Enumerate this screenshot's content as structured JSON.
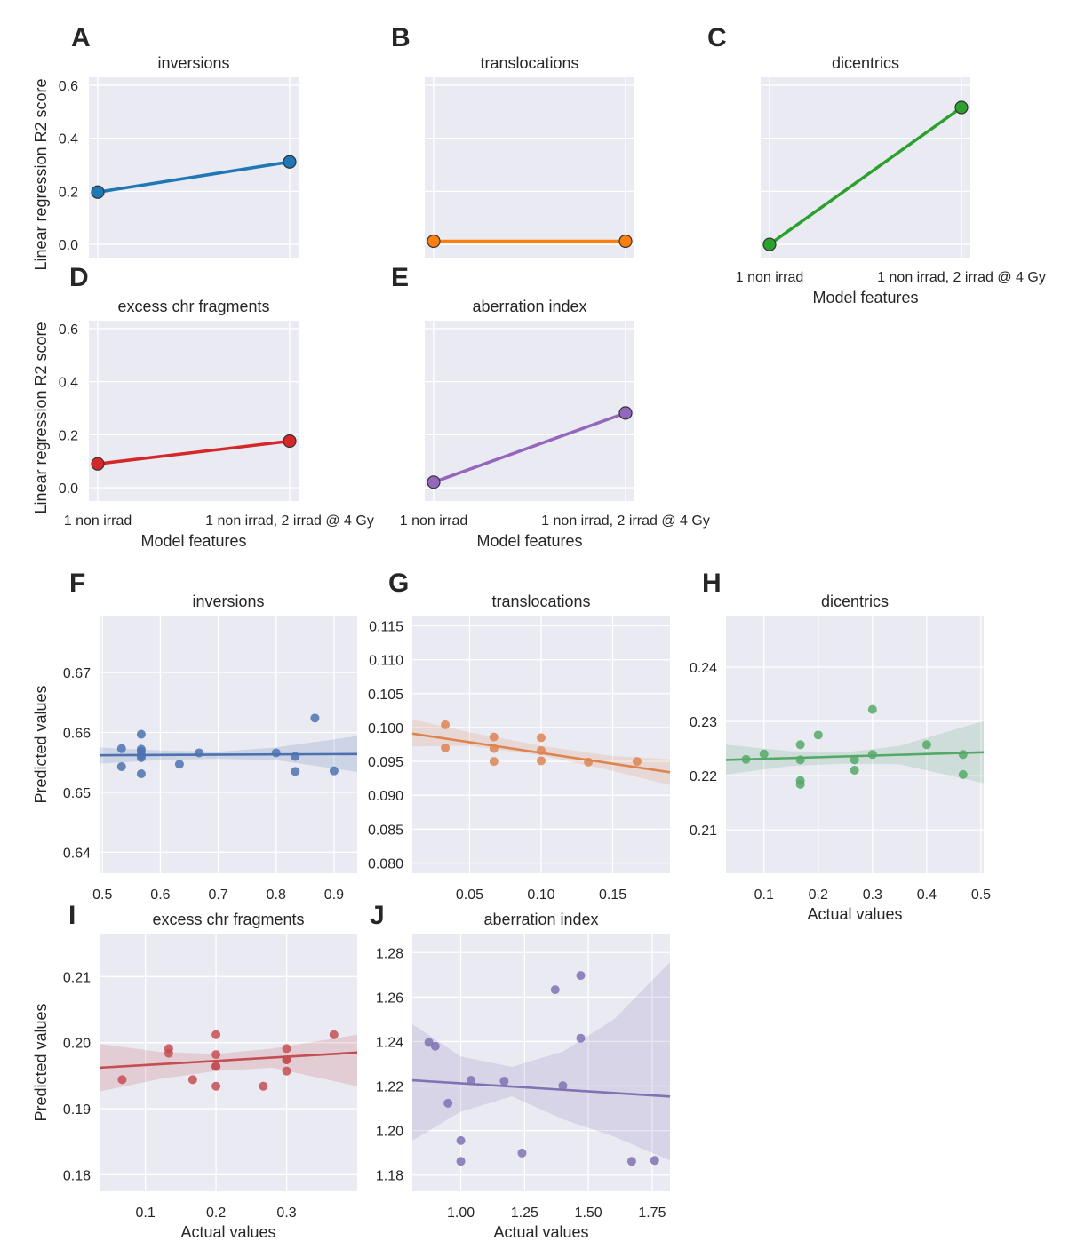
{
  "chart_data": [
    {
      "panel": "A",
      "type": "line",
      "title": "inversions",
      "categories": [
        "1 non irrad",
        "1 non irrad, 2 irrad @ 4 Gy"
      ],
      "values": [
        0.197,
        0.311
      ],
      "color": "#1f77b4",
      "ylabel": "Linear regression R2 score",
      "xlabel": "",
      "ylim": [
        -0.05,
        0.63
      ],
      "yticks": [
        0.0,
        0.2,
        0.4,
        0.6
      ],
      "yticklabels": [
        "0.0",
        "0.2",
        "0.4",
        "0.6"
      ]
    },
    {
      "panel": "B",
      "type": "line",
      "title": "translocations",
      "categories": [
        "1 non irrad",
        "1 non irrad, 2 irrad @ 4 Gy"
      ],
      "values": [
        0.012,
        0.012
      ],
      "color": "#ff7f0e",
      "ylabel": "",
      "xlabel": "",
      "ylim": [
        -0.05,
        0.63
      ],
      "yticks": [
        0.0,
        0.2,
        0.4,
        0.6
      ],
      "yticklabels": []
    },
    {
      "panel": "C",
      "type": "line",
      "title": "dicentrics",
      "categories": [
        "1 non irrad",
        "1 non irrad, 2 irrad @ 4 Gy"
      ],
      "values": [
        0.0,
        0.516
      ],
      "color": "#2ca02c",
      "ylabel": "",
      "xlabel": "Model features",
      "xticklabels": [
        "1 non irrad",
        "1 non irrad, 2 irrad @ 4 Gy"
      ],
      "ylim": [
        -0.05,
        0.63
      ],
      "yticks": [
        0.0,
        0.2,
        0.4,
        0.6
      ],
      "yticklabels": []
    },
    {
      "panel": "D",
      "type": "line",
      "title": "excess chr fragments",
      "categories": [
        "1 non irrad",
        "1 non irrad, 2 irrad @ 4 Gy"
      ],
      "values": [
        0.09,
        0.176
      ],
      "color": "#d62728",
      "ylabel": "Linear regression R2 score",
      "xlabel": "Model features",
      "xticklabels": [
        "1 non irrad",
        "1 non irrad, 2 irrad @ 4 Gy"
      ],
      "ylim": [
        -0.05,
        0.63
      ],
      "yticks": [
        0.0,
        0.2,
        0.4,
        0.6
      ],
      "yticklabels": [
        "0.0",
        "0.2",
        "0.4",
        "0.6"
      ]
    },
    {
      "panel": "E",
      "type": "line",
      "title": "aberration index",
      "categories": [
        "1 non irrad",
        "1 non irrad, 2 irrad @ 4 Gy"
      ],
      "values": [
        0.021,
        0.282
      ],
      "color": "#9467bd",
      "ylabel": "",
      "xlabel": "Model features",
      "xticklabels": [
        "1 non irrad",
        "1 non irrad, 2 irrad @ 4 Gy"
      ],
      "ylim": [
        -0.05,
        0.63
      ],
      "yticks": [
        0.0,
        0.2,
        0.4,
        0.6
      ],
      "yticklabels": []
    },
    {
      "panel": "F",
      "type": "scatter",
      "title": "inversions",
      "color": "#4c72b0",
      "xlabel": "",
      "ylabel": "Predicted values",
      "xlim": [
        0.495,
        0.94
      ],
      "ylim": [
        0.6365,
        0.6795
      ],
      "xticks": [
        0.5,
        0.6,
        0.7,
        0.8,
        0.9
      ],
      "xticklabels": [
        "0.5",
        "0.6",
        "0.7",
        "0.8",
        "0.9"
      ],
      "yticks": [
        0.64,
        0.65,
        0.66,
        0.67
      ],
      "yticklabels": [
        "0.64",
        "0.65",
        "0.66",
        "0.67"
      ],
      "x": [
        0.533,
        0.533,
        0.567,
        0.567,
        0.567,
        0.567,
        0.567,
        0.567,
        0.633,
        0.667,
        0.8,
        0.833,
        0.833,
        0.867,
        0.9
      ],
      "y": [
        0.6573,
        0.6543,
        0.6597,
        0.6572,
        0.6568,
        0.6562,
        0.6558,
        0.6531,
        0.6547,
        0.6566,
        0.6566,
        0.656,
        0.6535,
        0.6624,
        0.6536
      ],
      "fit": {
        "x": [
          0.495,
          0.94
        ],
        "y": [
          0.6562,
          0.6564
        ]
      },
      "band": {
        "x": [
          0.495,
          0.6,
          0.7,
          0.8,
          0.94
        ],
        "upper": [
          0.6575,
          0.657,
          0.6568,
          0.6575,
          0.6594
        ],
        "lower": [
          0.6548,
          0.6554,
          0.6556,
          0.6554,
          0.6534
        ]
      }
    },
    {
      "panel": "G",
      "type": "scatter",
      "title": "translocations",
      "color": "#dd8452",
      "xlabel": "",
      "ylabel": "",
      "xlim": [
        0.01,
        0.19
      ],
      "ylim": [
        0.0785,
        0.1165
      ],
      "xticks": [
        0.05,
        0.1,
        0.15
      ],
      "xticklabels": [
        "0.05",
        "0.10",
        "0.15"
      ],
      "yticks": [
        0.08,
        0.085,
        0.09,
        0.095,
        0.1,
        0.105,
        0.11,
        0.115
      ],
      "yticklabels": [
        "0.080",
        "0.085",
        "0.090",
        "0.095",
        "0.100",
        "0.105",
        "0.110",
        "0.115"
      ],
      "x": [
        0.033,
        0.033,
        0.067,
        0.067,
        0.067,
        0.1,
        0.1,
        0.1,
        0.133,
        0.167
      ],
      "y": [
        0.1004,
        0.097,
        0.0986,
        0.0969,
        0.095,
        0.0985,
        0.0966,
        0.0951,
        0.0949,
        0.095
      ],
      "fit": {
        "x": [
          0.01,
          0.19
        ],
        "y": [
          0.0991,
          0.0934
        ]
      },
      "band": {
        "x": [
          0.01,
          0.05,
          0.1,
          0.15,
          0.19
        ],
        "upper": [
          0.1012,
          0.0993,
          0.0973,
          0.0958,
          0.0953
        ],
        "lower": [
          0.0972,
          0.0973,
          0.0959,
          0.0936,
          0.0915
        ]
      }
    },
    {
      "panel": "H",
      "type": "scatter",
      "title": "dicentrics",
      "color": "#55a868",
      "xlabel": "Actual values",
      "ylabel": "",
      "xlim": [
        0.03,
        0.505
      ],
      "ylim": [
        0.202,
        0.2495
      ],
      "xticks": [
        0.1,
        0.2,
        0.3,
        0.4,
        0.5
      ],
      "xticklabels": [
        "0.1",
        "0.2",
        "0.3",
        "0.4",
        "0.5"
      ],
      "yticks": [
        0.21,
        0.22,
        0.23,
        0.24
      ],
      "yticklabels": [
        "0.21",
        "0.22",
        "0.23",
        "0.24"
      ],
      "x": [
        0.067,
        0.1,
        0.167,
        0.167,
        0.167,
        0.167,
        0.2,
        0.267,
        0.267,
        0.3,
        0.3,
        0.4,
        0.467,
        0.467
      ],
      "y": [
        0.223,
        0.224,
        0.2257,
        0.2229,
        0.2191,
        0.2184,
        0.2275,
        0.2229,
        0.221,
        0.2322,
        0.2239,
        0.2257,
        0.2239,
        0.2202
      ],
      "fit": {
        "x": [
          0.03,
          0.505
        ],
        "y": [
          0.2229,
          0.2243
        ]
      },
      "band": {
        "x": [
          0.03,
          0.15,
          0.25,
          0.35,
          0.505
        ],
        "upper": [
          0.2257,
          0.2245,
          0.2243,
          0.2255,
          0.2301
        ],
        "lower": [
          0.2202,
          0.2218,
          0.2222,
          0.2221,
          0.2186
        ]
      }
    },
    {
      "panel": "I",
      "type": "scatter",
      "title": "excess chr fragments",
      "color": "#c44e52",
      "xlabel": "Actual values",
      "ylabel": "Predicted values",
      "xlim": [
        0.035,
        0.4
      ],
      "ylim": [
        0.1775,
        0.2165
      ],
      "xticks": [
        0.1,
        0.2,
        0.3
      ],
      "xticklabels": [
        "0.1",
        "0.2",
        "0.3"
      ],
      "yticks": [
        0.18,
        0.19,
        0.2,
        0.21
      ],
      "yticklabels": [
        "0.18",
        "0.19",
        "0.20",
        "0.21"
      ],
      "x": [
        0.067,
        0.133,
        0.133,
        0.167,
        0.2,
        0.2,
        0.2,
        0.2,
        0.2,
        0.267,
        0.3,
        0.3,
        0.3,
        0.3,
        0.367
      ],
      "y": [
        0.1944,
        0.1991,
        0.1984,
        0.1944,
        0.2012,
        0.1982,
        0.1964,
        0.1934,
        0.1964,
        0.1934,
        0.1991,
        0.1974,
        0.1957,
        0.1974,
        0.2012
      ],
      "fit": {
        "x": [
          0.035,
          0.4
        ],
        "y": [
          0.1962,
          0.1985
        ]
      },
      "band": {
        "x": [
          0.035,
          0.12,
          0.2,
          0.28,
          0.4
        ],
        "upper": [
          0.1998,
          0.1986,
          0.1983,
          0.1991,
          0.2012
        ],
        "lower": [
          0.1926,
          0.1945,
          0.1957,
          0.1962,
          0.1934
        ]
      }
    },
    {
      "panel": "J",
      "type": "scatter",
      "title": "aberration index",
      "color": "#8172b3",
      "xlabel": "Actual values",
      "ylabel": "",
      "xlim": [
        0.81,
        1.82
      ],
      "ylim": [
        1.1727,
        1.2885
      ],
      "xticks": [
        1.0,
        1.25,
        1.5,
        1.75
      ],
      "xticklabels": [
        "1.00",
        "1.25",
        "1.50",
        "1.75"
      ],
      "yticks": [
        1.18,
        1.2,
        1.22,
        1.24,
        1.26,
        1.28
      ],
      "yticklabels": [
        "1.18",
        "1.20",
        "1.22",
        "1.24",
        "1.26",
        "1.28"
      ],
      "x": [
        0.875,
        0.9,
        0.95,
        1.0,
        1.0,
        1.04,
        1.17,
        1.24,
        1.37,
        1.4,
        1.47,
        1.47,
        1.67,
        1.76
      ],
      "y": [
        1.2396,
        1.2379,
        1.2123,
        1.1955,
        1.1862,
        1.2226,
        1.2222,
        1.1899,
        1.2633,
        1.2201,
        1.2697,
        1.2415,
        1.1862,
        1.1866
      ],
      "fit": {
        "x": [
          0.81,
          1.82
        ],
        "y": [
          1.2226,
          1.2153
        ]
      },
      "band": {
        "x": [
          0.81,
          1.0,
          1.2,
          1.4,
          1.6,
          1.82
        ],
        "upper": [
          1.2478,
          1.2333,
          1.2286,
          1.2355,
          1.2499,
          1.2757
        ],
        "lower": [
          1.1955,
          1.2085,
          1.2154,
          1.2051,
          1.1973,
          1.1866
        ]
      }
    }
  ]
}
